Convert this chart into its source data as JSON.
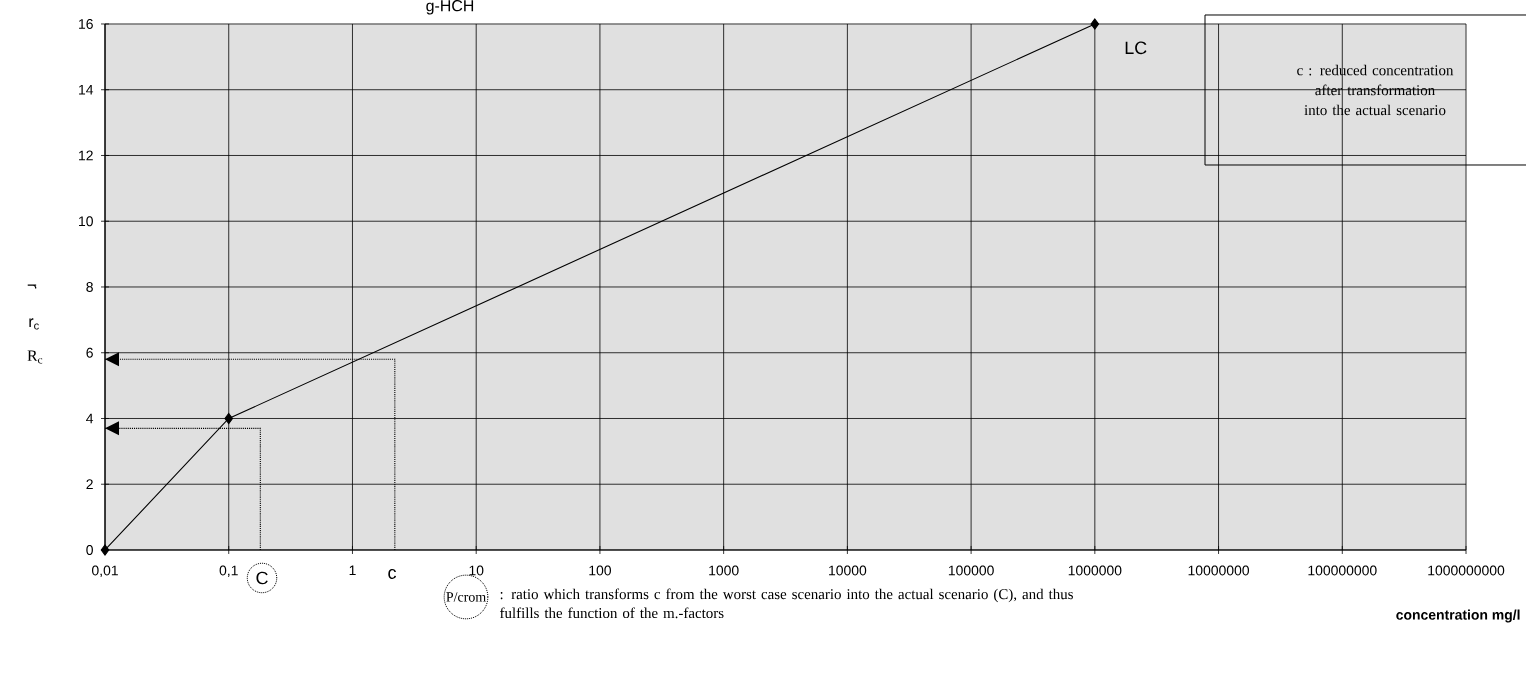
{
  "chart_data": {
    "type": "line",
    "title": "g-HCH",
    "xlabel": "concentration mg/l",
    "ylabel": "R$_{c}$",
    "x": [
      0.01,
      0.1,
      1000000
    ],
    "series": [
      {
        "color": "#000000",
        "values": [
          0,
          4,
          16
        ]
      },
      {
        "type": "line",
        "x": [
          0.18,
          0.18,
          0.01
        ],
        "values": [
          0,
          3.7,
          3.7
        ],
        "color": "#000000",
        "line_style": "dotted",
        "marker": "none"
      },
      {
        "type": "line",
        "x": [
          2.2,
          2.2,
          0.01
        ],
        "values": [
          0,
          5.8,
          5.8
        ],
        "color": "#000000",
        "line_style": "dotted",
        "marker": "none"
      }
    ],
    "marker": "diamond",
    "line_style": "solid",
    "log": "x",
    "grid": true,
    "xlim": [
      0.01,
      1000000000
    ],
    "ylim": [
      0,
      16
    ],
    "xticks": [
      {
        "value": 0.01,
        "label": "0,01"
      },
      {
        "value": 0.1,
        "label": "0,1"
      },
      1,
      10,
      100,
      1000,
      10000,
      100000,
      1000000,
      10000000,
      100000000,
      1000000000
    ],
    "yticks": [
      0,
      2,
      4,
      6,
      8,
      10,
      12,
      14,
      16
    ],
    "annotations": [
      "C",
      "c",
      "LC",
      "c  : reduced concentration after transformation into the actual scenario",
      "P/crom",
      ": ratio which transforms c from the worst case scenario into the actual scenario (C), and thus fulfills the function of the m.-factors",
      "r",
      "r$_{c}$"
    ]
  }
}
